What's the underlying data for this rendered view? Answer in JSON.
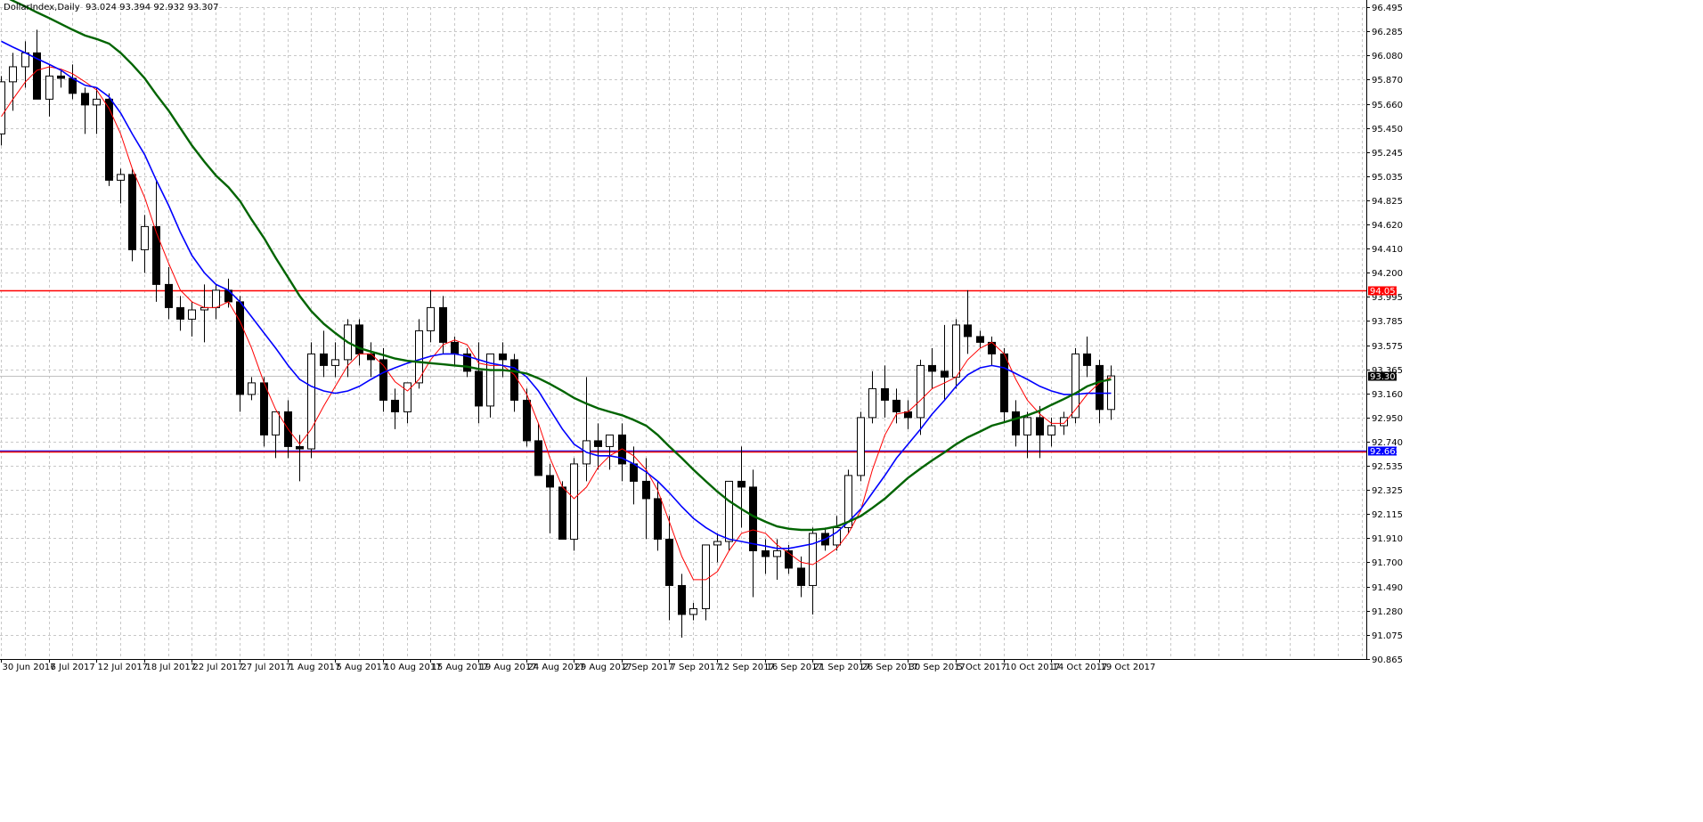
{
  "header": {
    "symbol_timeframe": "DollarIndex,Daily",
    "ohlc_text": "93.024 93.394 92.932 93.307"
  },
  "colors": {
    "background": "#ffffff",
    "grid": "#c8c8c8",
    "bull_fill": "#ffffff",
    "bear_fill": "#000000",
    "candle_outline": "#000000",
    "ma_fast": "#ff0000",
    "ma_mid": "#0000ff",
    "ma_slow": "#006400",
    "hline_resistance": "#ff0000",
    "hline_support_blue": "#0000ff",
    "price_tag_red": "#ff0000",
    "price_tag_blue": "#0000ff",
    "current_price_tag": "#000000"
  },
  "chart_data": {
    "type": "candlestick",
    "y_axis_ticks": [
      "96.495",
      "96.285",
      "96.080",
      "95.870",
      "95.660",
      "95.450",
      "95.245",
      "95.035",
      "94.825",
      "94.620",
      "94.410",
      "94.200",
      "93.995",
      "93.785",
      "93.575",
      "93.365",
      "93.160",
      "92.950",
      "92.740",
      "92.535",
      "92.325",
      "92.115",
      "91.910",
      "91.700",
      "91.490",
      "91.280",
      "91.075",
      "90.865"
    ],
    "ylim": [
      90.865,
      96.495
    ],
    "x_axis_labels": [
      "30 Jun 2017",
      "6 Jul 2017",
      "12 Jul 2017",
      "18 Jul 2017",
      "22 Jul 2017",
      "27 Jul 2017",
      "1 Aug 2017",
      "5 Aug 2017",
      "10 Aug 2017",
      "15 Aug 2017",
      "19 Aug 2017",
      "24 Aug 2017",
      "29 Aug 2017",
      "2 Sep 2017",
      "7 Sep 2017",
      "12 Sep 2017",
      "16 Sep 2017",
      "21 Sep 2017",
      "26 Sep 2017",
      "30 Sep 2017",
      "5 Oct 2017",
      "10 Oct 2017",
      "14 Oct 2017",
      "19 Oct 2017"
    ],
    "x_label_bar_index": [
      0,
      4,
      8,
      12,
      16,
      20,
      24,
      28,
      32,
      36,
      40,
      44,
      48,
      52,
      56,
      60,
      64,
      68,
      72,
      76,
      80,
      84,
      88,
      92
    ],
    "horizontal_lines": [
      {
        "value": 94.051,
        "label": "94.051",
        "color": "#ff0000"
      },
      {
        "value": 92.665,
        "label": "92.665",
        "color": "#0000ff"
      },
      {
        "value": 92.655,
        "label": "",
        "color": "#ff0000"
      }
    ],
    "current_price": {
      "value": 93.307,
      "label": "93.307"
    },
    "candles": [
      [
        95.4,
        95.9,
        95.3,
        95.85
      ],
      [
        95.85,
        96.1,
        95.6,
        95.98
      ],
      [
        95.98,
        96.2,
        95.8,
        96.1
      ],
      [
        96.1,
        96.3,
        95.7,
        95.7
      ],
      [
        95.7,
        96.0,
        95.55,
        95.9
      ],
      [
        95.9,
        95.95,
        95.8,
        95.88
      ],
      [
        95.88,
        96.0,
        95.7,
        95.75
      ],
      [
        95.75,
        95.8,
        95.4,
        95.65
      ],
      [
        95.65,
        95.8,
        95.4,
        95.7
      ],
      [
        95.7,
        95.75,
        94.95,
        95.0
      ],
      [
        95.0,
        95.1,
        94.8,
        95.05
      ],
      [
        95.05,
        95.1,
        94.3,
        94.4
      ],
      [
        94.4,
        94.7,
        94.2,
        94.6
      ],
      [
        94.6,
        95.0,
        93.95,
        94.1
      ],
      [
        94.1,
        94.25,
        93.8,
        93.9
      ],
      [
        93.9,
        94.0,
        93.7,
        93.8
      ],
      [
        93.8,
        93.95,
        93.65,
        93.88
      ],
      [
        93.88,
        94.1,
        93.6,
        93.9
      ],
      [
        93.9,
        94.1,
        93.8,
        94.05
      ],
      [
        94.05,
        94.15,
        93.9,
        93.95
      ],
      [
        93.95,
        94.0,
        93.0,
        93.15
      ],
      [
        93.15,
        93.3,
        93.1,
        93.25
      ],
      [
        93.25,
        93.3,
        92.7,
        92.8
      ],
      [
        92.8,
        93.0,
        92.6,
        93.0
      ],
      [
        93.0,
        93.1,
        92.6,
        92.7
      ],
      [
        92.7,
        92.8,
        92.4,
        92.68
      ],
      [
        92.68,
        93.6,
        92.6,
        93.5
      ],
      [
        93.5,
        93.7,
        93.3,
        93.4
      ],
      [
        93.4,
        93.6,
        93.3,
        93.45
      ],
      [
        93.45,
        93.8,
        93.3,
        93.75
      ],
      [
        93.75,
        93.8,
        93.4,
        93.5
      ],
      [
        93.5,
        93.6,
        93.3,
        93.45
      ],
      [
        93.45,
        93.55,
        93.0,
        93.1
      ],
      [
        93.1,
        93.2,
        92.85,
        93.0
      ],
      [
        93.0,
        93.2,
        92.9,
        93.25
      ],
      [
        93.25,
        93.8,
        93.2,
        93.7
      ],
      [
        93.7,
        94.05,
        93.6,
        93.9
      ],
      [
        93.9,
        94.0,
        93.5,
        93.6
      ],
      [
        93.6,
        93.65,
        93.4,
        93.5
      ],
      [
        93.5,
        93.55,
        93.3,
        93.35
      ],
      [
        93.35,
        93.6,
        92.9,
        93.05
      ],
      [
        93.05,
        93.5,
        92.95,
        93.5
      ],
      [
        93.5,
        93.6,
        93.3,
        93.45
      ],
      [
        93.45,
        93.5,
        93.0,
        93.1
      ],
      [
        93.1,
        93.2,
        92.7,
        92.75
      ],
      [
        92.75,
        92.9,
        92.5,
        92.45
      ],
      [
        92.45,
        92.55,
        91.95,
        92.35
      ],
      [
        92.35,
        92.4,
        91.9,
        91.9
      ],
      [
        91.9,
        92.6,
        91.8,
        92.55
      ],
      [
        92.55,
        93.3,
        92.4,
        92.75
      ],
      [
        92.75,
        92.9,
        92.5,
        92.7
      ],
      [
        92.7,
        92.8,
        92.5,
        92.8
      ],
      [
        92.8,
        92.9,
        92.4,
        92.55
      ],
      [
        92.55,
        92.7,
        92.2,
        92.4
      ],
      [
        92.4,
        92.6,
        91.9,
        92.25
      ],
      [
        92.25,
        92.4,
        91.8,
        91.9
      ],
      [
        91.9,
        92.1,
        91.2,
        91.5
      ],
      [
        91.5,
        91.6,
        91.05,
        91.25
      ],
      [
        91.25,
        91.35,
        91.2,
        91.3
      ],
      [
        91.3,
        91.8,
        91.2,
        91.85
      ],
      [
        91.85,
        91.95,
        91.7,
        91.88
      ],
      [
        91.88,
        92.4,
        91.8,
        92.4
      ],
      [
        92.4,
        92.7,
        92.0,
        92.35
      ],
      [
        92.35,
        92.5,
        91.4,
        91.8
      ],
      [
        91.8,
        91.9,
        91.6,
        91.75
      ],
      [
        91.75,
        91.9,
        91.55,
        91.8
      ],
      [
        91.8,
        91.85,
        91.6,
        91.65
      ],
      [
        91.65,
        91.75,
        91.4,
        91.5
      ],
      [
        91.5,
        92.0,
        91.25,
        91.95
      ],
      [
        91.95,
        92.0,
        91.8,
        91.85
      ],
      [
        91.85,
        92.1,
        91.8,
        92.0
      ],
      [
        92.0,
        92.5,
        91.95,
        92.45
      ],
      [
        92.45,
        93.0,
        92.4,
        92.95
      ],
      [
        92.95,
        93.35,
        92.9,
        93.2
      ],
      [
        93.2,
        93.4,
        92.95,
        93.1
      ],
      [
        93.1,
        93.2,
        92.9,
        93.0
      ],
      [
        93.0,
        93.1,
        92.85,
        92.95
      ],
      [
        92.95,
        93.45,
        92.8,
        93.4
      ],
      [
        93.4,
        93.55,
        93.2,
        93.35
      ],
      [
        93.35,
        93.75,
        93.1,
        93.3
      ],
      [
        93.3,
        93.8,
        93.2,
        93.75
      ],
      [
        93.75,
        94.05,
        93.5,
        93.65
      ],
      [
        93.65,
        93.7,
        93.55,
        93.6
      ],
      [
        93.6,
        93.65,
        93.4,
        93.5
      ],
      [
        93.5,
        93.55,
        92.9,
        93.0
      ],
      [
        93.0,
        93.1,
        92.7,
        92.8
      ],
      [
        92.8,
        93.0,
        92.6,
        92.95
      ],
      [
        92.95,
        93.05,
        92.6,
        92.8
      ],
      [
        92.8,
        92.95,
        92.7,
        92.88
      ],
      [
        92.88,
        93.0,
        92.8,
        92.95
      ],
      [
        92.95,
        93.55,
        92.9,
        93.5
      ],
      [
        93.5,
        93.65,
        93.3,
        93.4
      ],
      [
        93.4,
        93.45,
        92.9,
        93.02
      ],
      [
        93.02,
        93.4,
        92.93,
        93.31
      ]
    ],
    "moving_averages": [
      {
        "color": "#ff0000",
        "values": [
          95.55,
          95.7,
          95.85,
          95.95,
          95.98,
          95.96,
          95.92,
          95.85,
          95.78,
          95.62,
          95.4,
          95.1,
          94.85,
          94.55,
          94.28,
          94.05,
          93.95,
          93.9,
          93.9,
          93.95,
          93.78,
          93.55,
          93.25,
          93.02,
          92.85,
          92.72,
          92.85,
          93.05,
          93.22,
          93.4,
          93.5,
          93.5,
          93.4,
          93.26,
          93.18,
          93.28,
          93.45,
          93.58,
          93.62,
          93.58,
          93.42,
          93.4,
          93.4,
          93.32,
          93.15,
          92.9,
          92.6,
          92.35,
          92.25,
          92.35,
          92.52,
          92.62,
          92.68,
          92.62,
          92.5,
          92.32,
          92.05,
          91.75,
          91.55,
          91.55,
          91.62,
          91.8,
          91.95,
          91.98,
          91.95,
          91.85,
          91.78,
          91.7,
          91.68,
          91.75,
          91.82,
          91.95,
          92.15,
          92.5,
          92.8,
          92.98,
          93.0,
          93.1,
          93.2,
          93.25,
          93.3,
          93.45,
          93.55,
          93.6,
          93.5,
          93.28,
          93.1,
          92.98,
          92.9,
          92.9,
          93.02,
          93.15,
          93.25,
          93.3
        ]
      },
      {
        "color": "#0000ff",
        "values": [
          96.2,
          96.15,
          96.1,
          96.05,
          96.0,
          95.95,
          95.88,
          95.82,
          95.8,
          95.72,
          95.58,
          95.4,
          95.22,
          95.0,
          94.78,
          94.55,
          94.35,
          94.2,
          94.1,
          94.05,
          93.95,
          93.82,
          93.68,
          93.55,
          93.4,
          93.28,
          93.22,
          93.18,
          93.16,
          93.18,
          93.22,
          93.28,
          93.34,
          93.38,
          93.42,
          93.45,
          93.48,
          93.5,
          93.5,
          93.48,
          93.45,
          93.42,
          93.4,
          93.38,
          93.3,
          93.18,
          93.02,
          92.85,
          92.72,
          92.65,
          92.62,
          92.62,
          92.6,
          92.55,
          92.48,
          92.4,
          92.3,
          92.18,
          92.08,
          92.0,
          91.94,
          91.9,
          91.88,
          91.86,
          91.84,
          91.82,
          91.82,
          91.84,
          91.86,
          91.9,
          91.96,
          92.05,
          92.16,
          92.3,
          92.45,
          92.6,
          92.72,
          92.85,
          92.98,
          93.1,
          93.22,
          93.32,
          93.38,
          93.4,
          93.38,
          93.33,
          93.28,
          93.22,
          93.18,
          93.15,
          93.15,
          93.16,
          93.16,
          93.16
        ]
      },
      {
        "color": "#006400",
        "values": [
          96.6,
          96.55,
          96.5,
          96.45,
          96.4,
          96.35,
          96.3,
          96.25,
          96.22,
          96.18,
          96.1,
          96.0,
          95.88,
          95.74,
          95.6,
          95.45,
          95.3,
          95.16,
          95.04,
          94.94,
          94.82,
          94.66,
          94.5,
          94.33,
          94.16,
          94.0,
          93.87,
          93.76,
          93.68,
          93.6,
          93.55,
          93.52,
          93.49,
          93.46,
          93.44,
          93.43,
          93.42,
          93.41,
          93.4,
          93.39,
          93.37,
          93.36,
          93.36,
          93.35,
          93.33,
          93.29,
          93.24,
          93.18,
          93.12,
          93.07,
          93.03,
          93.0,
          92.97,
          92.93,
          92.88,
          92.8,
          92.7,
          92.6,
          92.5,
          92.4,
          92.31,
          92.23,
          92.16,
          92.1,
          92.05,
          92.01,
          91.99,
          91.98,
          91.98,
          91.99,
          92.01,
          92.05,
          92.1,
          92.17,
          92.25,
          92.34,
          92.43,
          92.51,
          92.58,
          92.65,
          92.72,
          92.78,
          92.83,
          92.88,
          92.91,
          92.94,
          92.97,
          93.01,
          93.06,
          93.11,
          93.16,
          93.22,
          93.26,
          93.28
        ]
      }
    ]
  }
}
